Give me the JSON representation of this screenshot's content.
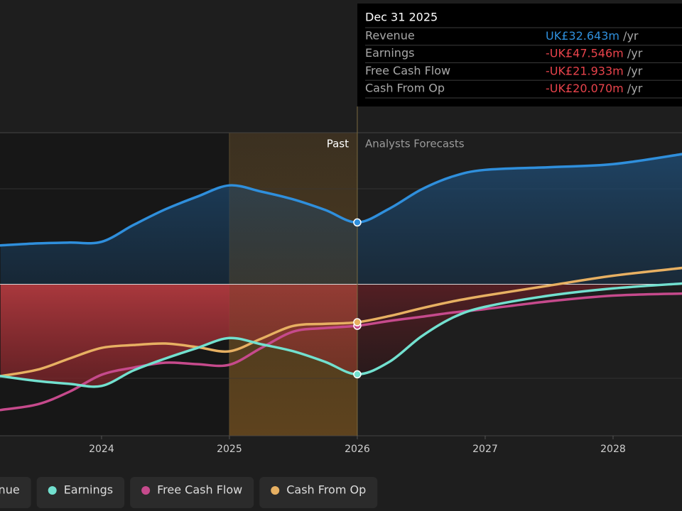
{
  "chart_data": {
    "type": "line",
    "x": [
      2023.21,
      2023.5,
      2023.75,
      2024,
      2024.25,
      2024.5,
      2024.75,
      2025,
      2025.25,
      2025.5,
      2025.75,
      2026,
      2026.25,
      2026.5,
      2026.75,
      2027,
      2027.5,
      2028,
      2028.54
    ],
    "xlim": [
      2023.206,
      2028.539
    ],
    "xticks": [
      2024,
      2025,
      2026,
      2027,
      2028
    ],
    "ylim": [
      -80,
      80
    ],
    "series": [
      {
        "name": "Revenue",
        "color": "#2f8fdc",
        "values": [
          20.5,
          21.6,
          22.0,
          22.4,
          31.3,
          39.6,
          46.3,
          52.2,
          48.9,
          44.8,
          39.2,
          32.643,
          39.9,
          50.0,
          57.0,
          60.4,
          61.8,
          63.4,
          68.7
        ]
      },
      {
        "name": "Earnings",
        "color": "#72e0cf",
        "values": [
          -48.5,
          -51.1,
          -52.6,
          -53.7,
          -45.5,
          -39.2,
          -33.6,
          -28.4,
          -31.7,
          -35.4,
          -41.0,
          -47.546,
          -41.0,
          -27.6,
          -17.5,
          -11.9,
          -6.0,
          -2.2,
          0.4
        ]
      },
      {
        "name": "Free Cash Flow",
        "color": "#c64a8c",
        "values": [
          -66.4,
          -63.4,
          -56.7,
          -47.8,
          -44.0,
          -41.4,
          -42.2,
          -42.5,
          -33.6,
          -25.0,
          -23.1,
          -21.933,
          -19.4,
          -17.2,
          -14.9,
          -13.1,
          -9.0,
          -6.0,
          -4.9
        ]
      },
      {
        "name": "Cash From Op",
        "color": "#e7b062",
        "values": [
          -48.5,
          -45.1,
          -39.2,
          -33.6,
          -32.1,
          -31.3,
          -33.2,
          -35.4,
          -28.7,
          -22.0,
          -20.9,
          -20.07,
          -16.8,
          -12.7,
          -9.0,
          -6.0,
          -0.7,
          4.5,
          8.6
        ]
      }
    ],
    "annotations": [
      "Past",
      "Analysts Forecasts"
    ],
    "tooltip": {
      "title": "Dec 31 2025",
      "value_labels": [
        "UK£32.643m",
        "-UK£47.546m",
        "-UK£21.933m",
        "-UK£20.070m"
      ],
      "unit": "/yr"
    },
    "legend": "bottom"
  }
}
